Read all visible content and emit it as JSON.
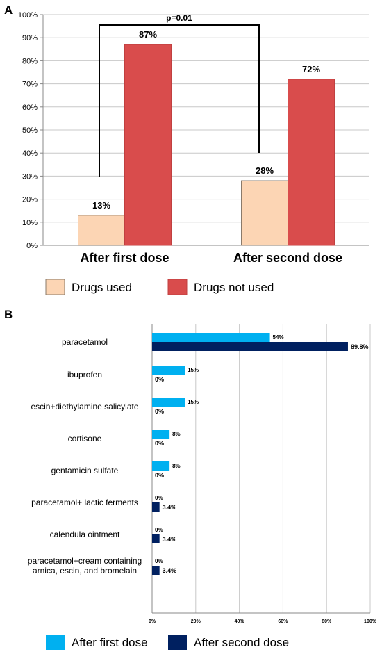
{
  "panels": {
    "a": {
      "label": "A",
      "significance": "p=0.01"
    },
    "b": {
      "label": "B"
    }
  },
  "colors": {
    "drugs_used": "#fcd5b4",
    "drugs_not_used": "#d94c4c",
    "after_first_dose": "#00b0f0",
    "after_second_dose": "#002060",
    "grid": "#c8c8c8",
    "axis": "#888888"
  },
  "chart_data": [
    {
      "panel": "A",
      "type": "bar",
      "title": "",
      "xlabel": "",
      "ylabel": "",
      "categories": [
        "After first dose",
        "After second dose"
      ],
      "series": [
        {
          "name": "Drugs used",
          "values": [
            13,
            28
          ],
          "labels": [
            "13%",
            "28%"
          ]
        },
        {
          "name": "Drugs not used",
          "values": [
            87,
            72
          ],
          "labels": [
            "87%",
            "72%"
          ]
        }
      ],
      "ylim": [
        0,
        100
      ],
      "yticks": [
        "0%",
        "10%",
        "20%",
        "30%",
        "40%",
        "50%",
        "60%",
        "70%",
        "80%",
        "90%",
        "100%"
      ],
      "grid": true,
      "legend": "bottom",
      "annotation": "p=0.01"
    },
    {
      "panel": "B",
      "type": "bar",
      "orientation": "horizontal",
      "title": "",
      "xlabel": "",
      "ylabel": "",
      "categories": [
        "paracetamol",
        "ibuprofen",
        "escin+diethylamine salicylate",
        "cortisone",
        "gentamicin sulfate",
        "paracetamol+ lactic ferments",
        "calendula ointment",
        "paracetamol+cream containing arnica, escin, and bromelain"
      ],
      "series": [
        {
          "name": "After first dose",
          "values": [
            54,
            15,
            15,
            8,
            8,
            0,
            0,
            0
          ],
          "labels": [
            "54%",
            "15%",
            "15%",
            "8%",
            "8%",
            "0%",
            "0%",
            "0%"
          ]
        },
        {
          "name": "After second dose",
          "values": [
            89.8,
            0,
            0,
            0,
            0,
            3.4,
            3.4,
            3.4
          ],
          "labels": [
            "89.8%",
            "0%",
            "0%",
            "0%",
            "0%",
            "3.4%",
            "3.4%",
            "3.4%"
          ]
        }
      ],
      "xlim": [
        0,
        100
      ],
      "xticks": [
        "0%",
        "20%",
        "40%",
        "60%",
        "80%",
        "100%"
      ],
      "grid": true,
      "legend": "bottom"
    }
  ]
}
